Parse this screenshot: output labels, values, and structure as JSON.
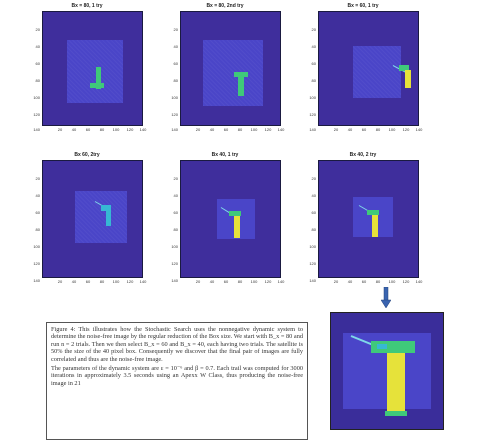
{
  "panels": [
    {
      "title": "Bx = 80, 1 try"
    },
    {
      "title": "Bx = 80, 2nd try"
    },
    {
      "title": "Bx = 60, 1 try"
    },
    {
      "title": "Bx 60, 2try"
    },
    {
      "title": "Bx 40, 1 try"
    },
    {
      "title": "Bx 40, 2 try"
    }
  ],
  "axes": {
    "y_ticks": [
      "20",
      "40",
      "60",
      "80",
      "100",
      "120",
      "140"
    ],
    "x_ticks": [
      "20",
      "40",
      "60",
      "80",
      "100",
      "120",
      "140"
    ]
  },
  "colors": {
    "background": "#3f2e9c",
    "box": "#4a45c8",
    "satellite_green": "#3fc97a",
    "satellite_yellow": "#e6e23a",
    "arrow": "#3a64b0"
  },
  "caption": {
    "p1": "Figure 4: This illustrates how the Stochastic Search uses the nonnegative dynamic system to determine the noise-free image by the regular reduction of the Box size. We start with B_x = 80 and run n = 2 trials. Then we then select B_x = 60 and B_x = 40, each having two trials. The satellite is 50% the size of the 40 pixel box. Consequently we discover that the final pair of images are fully correlated and thus are the noise-free image.",
    "p2": "The parameters of the dynamic system are ε = 10⁻⁶ and β = 0.7. Each trail was computed for 3000 iterations in approximately 3.5 seconds using an Apexx W Class, thus producing the noise-free image in 21"
  }
}
